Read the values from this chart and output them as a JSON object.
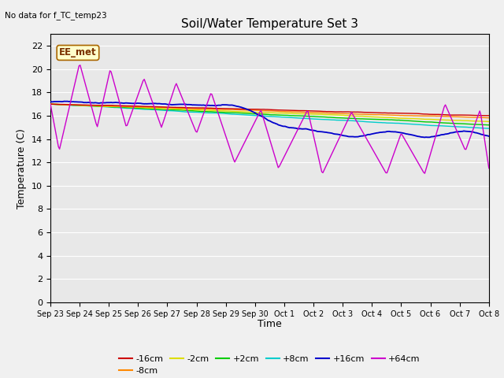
{
  "title": "Soil/Water Temperature Set 3",
  "no_data_label": "No data for f_TC_temp23",
  "xlabel": "Time",
  "ylabel": "Temperature (C)",
  "ylim": [
    0,
    23
  ],
  "yticks": [
    0,
    2,
    4,
    6,
    8,
    10,
    12,
    14,
    16,
    18,
    20,
    22
  ],
  "x_labels": [
    "Sep 23",
    "Sep 24",
    "Sep 25",
    "Sep 26",
    "Sep 27",
    "Sep 28",
    "Sep 29",
    "Sep 30",
    "Oct 1",
    "Oct 2",
    "Oct 3",
    "Oct 4",
    "Oct 5",
    "Oct 6",
    "Oct 7",
    "Oct 8"
  ],
  "annotation": "EE_met",
  "series_colors": {
    "-16cm": "#cc0000",
    "-8cm": "#ff8800",
    "-2cm": "#dddd00",
    "+2cm": "#00cc00",
    "+8cm": "#00cccc",
    "+16cm": "#0000cc",
    "+64cm": "#cc00cc"
  },
  "fig_facecolor": "#f0f0f0",
  "ax_facecolor": "#e8e8e8",
  "grid_color": "#ffffff"
}
